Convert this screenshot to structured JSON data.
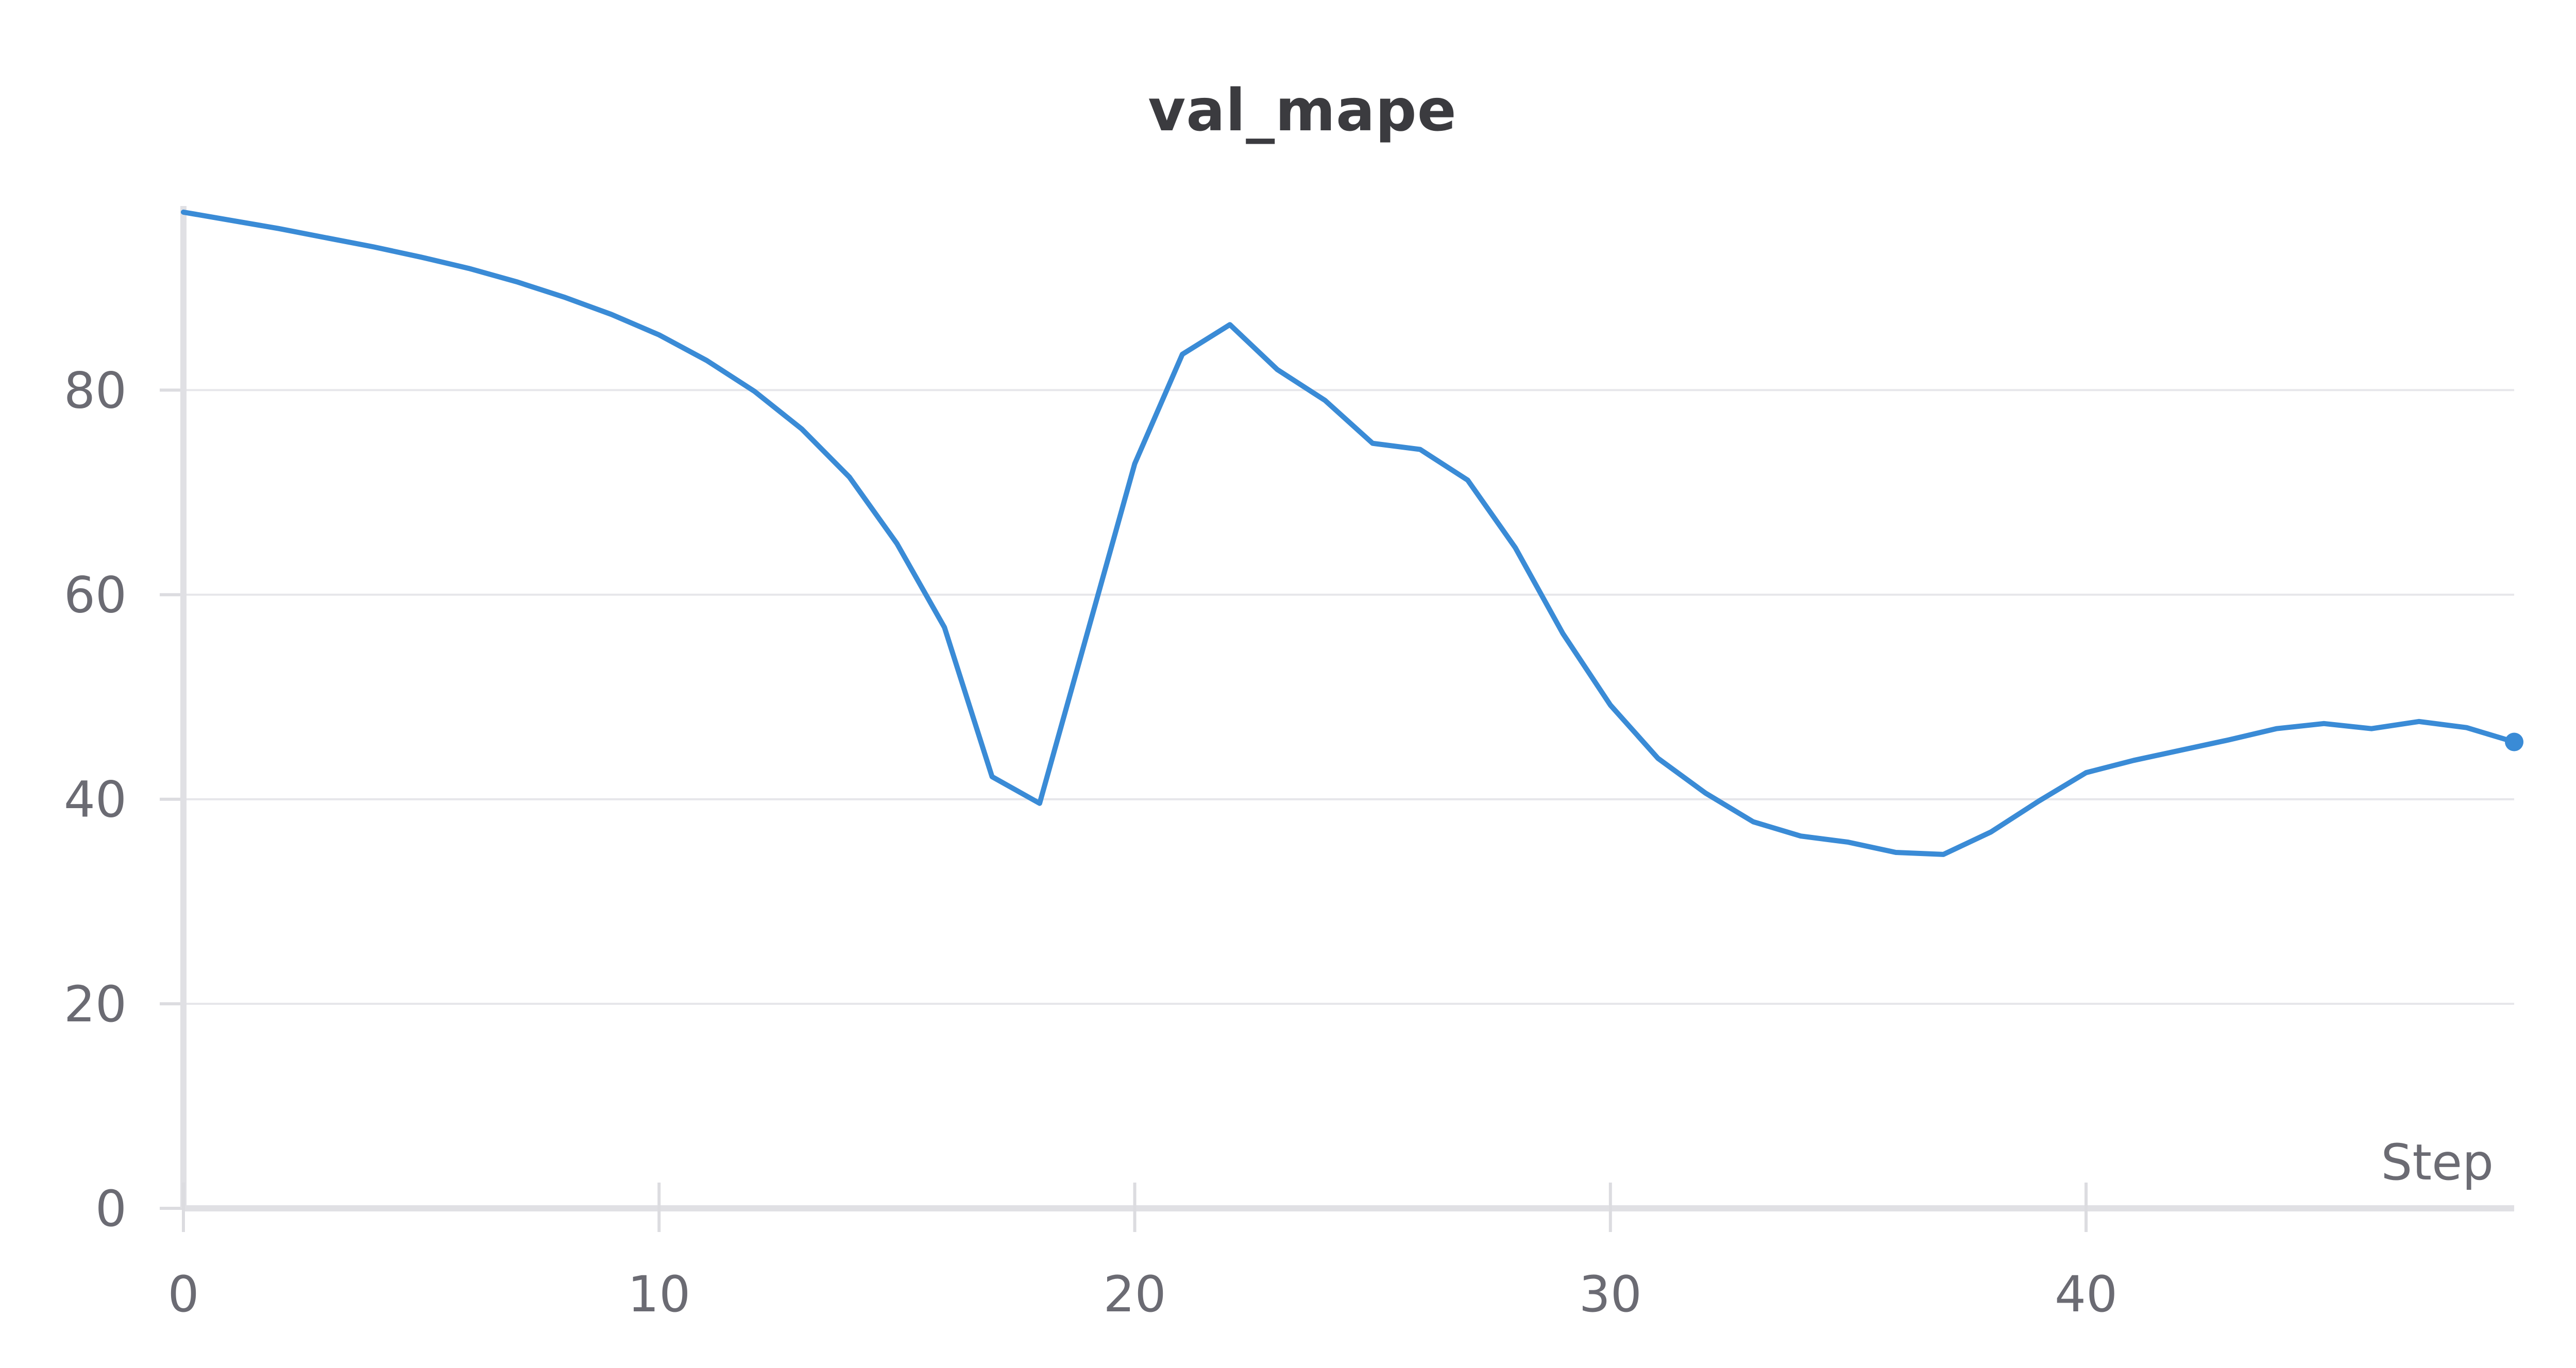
{
  "chart_data": {
    "type": "line",
    "title": "val_mape",
    "xlabel": "Step",
    "ylabel": "",
    "xlim": [
      0,
      49
    ],
    "ylim": [
      0,
      98
    ],
    "x_ticks": [
      0,
      10,
      20,
      30,
      40
    ],
    "y_ticks": [
      0,
      20,
      40,
      60,
      80
    ],
    "grid": true,
    "series": [
      {
        "name": "",
        "color": "#3a8bd6",
        "x": [
          0,
          1,
          2,
          3,
          4,
          5,
          6,
          7,
          8,
          9,
          10,
          11,
          12,
          13,
          14,
          15,
          16,
          17,
          18,
          19,
          20,
          21,
          22,
          23,
          24,
          25,
          26,
          27,
          28,
          29,
          30,
          31,
          32,
          33,
          34,
          35,
          36,
          37,
          38,
          39,
          40,
          41,
          42,
          43,
          44,
          45,
          46,
          47,
          48,
          49
        ],
        "y": [
          97.4,
          96.6,
          95.8,
          94.9,
          94.0,
          93.0,
          91.9,
          90.6,
          89.1,
          87.4,
          85.4,
          82.9,
          79.9,
          76.2,
          71.5,
          65.0,
          56.8,
          42.2,
          39.6,
          56.2,
          72.8,
          83.5,
          86.4,
          82.0,
          79.0,
          74.8,
          74.2,
          71.2,
          64.6,
          56.2,
          49.2,
          44.0,
          40.6,
          37.8,
          36.4,
          35.8,
          34.8,
          34.6,
          36.8,
          39.8,
          42.6,
          43.8,
          44.8,
          45.8,
          46.9,
          47.4,
          46.9,
          47.6,
          47.0,
          45.6
        ]
      }
    ]
  }
}
